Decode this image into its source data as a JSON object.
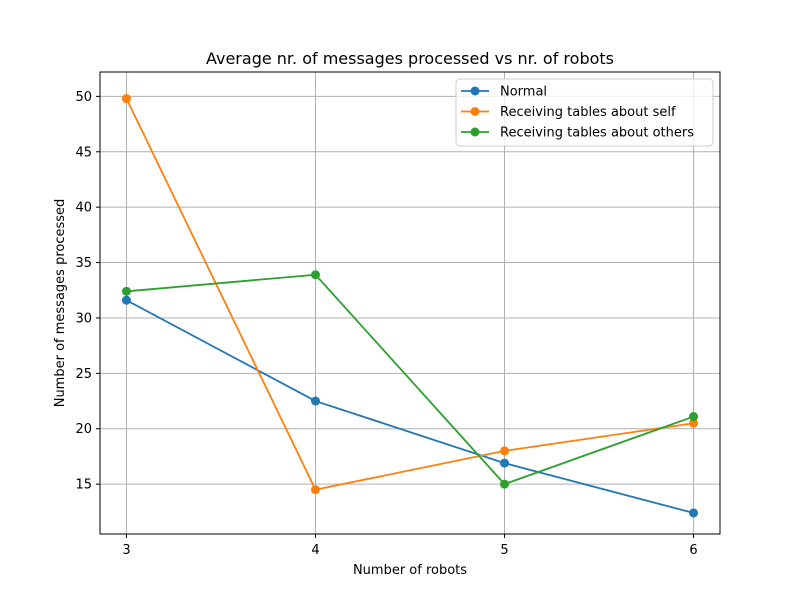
{
  "chart_data": {
    "type": "line",
    "title": "Average nr. of messages processed vs nr. of robots",
    "xlabel": "Number of robots",
    "ylabel": "Number of messages processed",
    "x": [
      3,
      4,
      5,
      6
    ],
    "x_tick_labels": [
      "3",
      "4",
      "5",
      "6"
    ],
    "y_ticks": [
      15,
      20,
      25,
      30,
      35,
      40,
      45,
      50
    ],
    "y_tick_labels": [
      "15",
      "20",
      "25",
      "30",
      "35",
      "40",
      "45",
      "50"
    ],
    "xlim": [
      2.86,
      6.14
    ],
    "ylim": [
      10.5,
      52.2
    ],
    "grid": true,
    "legend_position": "top-right",
    "series": [
      {
        "name": "Normal",
        "color": "#1f77b4",
        "values": [
          31.6,
          22.5,
          16.9,
          12.4
        ]
      },
      {
        "name": "Receiving tables about self",
        "color": "#ff7f0e",
        "values": [
          49.8,
          14.5,
          18.0,
          20.5
        ]
      },
      {
        "name": "Receiving tables about others",
        "color": "#2ca02c",
        "values": [
          32.4,
          33.9,
          15.0,
          21.1
        ]
      }
    ]
  }
}
